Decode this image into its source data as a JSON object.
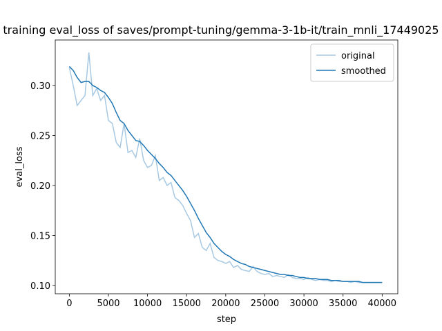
{
  "chart_data": {
    "type": "line",
    "title": "training eval_loss of saves/prompt-tuning/gemma-3-1b-it/train_mnli_17449025",
    "xlabel": "step",
    "ylabel": "eval_loss",
    "x": [
      0,
      500,
      1000,
      1500,
      2000,
      2500,
      3000,
      3500,
      4000,
      4500,
      5000,
      5500,
      6000,
      6500,
      7000,
      7500,
      8000,
      8500,
      9000,
      9500,
      10000,
      10500,
      11000,
      11500,
      12000,
      12500,
      13000,
      13500,
      14000,
      14500,
      15000,
      15500,
      16000,
      16500,
      17000,
      17500,
      18000,
      18500,
      19000,
      19500,
      20000,
      20500,
      21000,
      21500,
      22000,
      22500,
      23000,
      23500,
      24000,
      24500,
      25000,
      25500,
      26000,
      26500,
      27000,
      27500,
      28000,
      28500,
      29000,
      29500,
      30000,
      30500,
      31000,
      31500,
      32000,
      32500,
      33000,
      33500,
      34000,
      34500,
      35000,
      35500,
      36000,
      36500,
      37000,
      37500,
      38000,
      38500,
      39000,
      39500,
      40000
    ],
    "series": [
      {
        "name": "original",
        "color": "#a6c8e2",
        "values": [
          0.318,
          0.3,
          0.28,
          0.285,
          0.29,
          0.333,
          0.29,
          0.297,
          0.285,
          0.29,
          0.265,
          0.262,
          0.243,
          0.238,
          0.262,
          0.233,
          0.235,
          0.228,
          0.247,
          0.225,
          0.218,
          0.22,
          0.23,
          0.205,
          0.208,
          0.2,
          0.203,
          0.188,
          0.185,
          0.18,
          0.172,
          0.165,
          0.148,
          0.152,
          0.138,
          0.135,
          0.142,
          0.128,
          0.125,
          0.124,
          0.122,
          0.124,
          0.118,
          0.12,
          0.116,
          0.115,
          0.114,
          0.119,
          0.114,
          0.112,
          0.111,
          0.112,
          0.109,
          0.11,
          0.109,
          0.108,
          0.111,
          0.108,
          0.107,
          0.107,
          0.106,
          0.108,
          0.106,
          0.105,
          0.106,
          0.105,
          0.105,
          0.104,
          0.105,
          0.104,
          0.104,
          0.104,
          0.103,
          0.104,
          0.103,
          0.103,
          0.103,
          0.103,
          0.103,
          0.103,
          0.103
        ]
      },
      {
        "name": "smoothed",
        "color": "#1f77b4",
        "values": [
          0.319,
          0.315,
          0.308,
          0.303,
          0.304,
          0.304,
          0.3,
          0.298,
          0.295,
          0.293,
          0.288,
          0.282,
          0.273,
          0.265,
          0.262,
          0.255,
          0.25,
          0.245,
          0.244,
          0.24,
          0.235,
          0.231,
          0.227,
          0.222,
          0.218,
          0.213,
          0.21,
          0.205,
          0.2,
          0.195,
          0.189,
          0.182,
          0.175,
          0.167,
          0.16,
          0.153,
          0.148,
          0.142,
          0.138,
          0.134,
          0.131,
          0.129,
          0.126,
          0.124,
          0.122,
          0.121,
          0.119,
          0.118,
          0.117,
          0.116,
          0.115,
          0.114,
          0.113,
          0.112,
          0.111,
          0.111,
          0.11,
          0.11,
          0.109,
          0.108,
          0.108,
          0.107,
          0.107,
          0.107,
          0.106,
          0.106,
          0.106,
          0.105,
          0.105,
          0.105,
          0.104,
          0.104,
          0.104,
          0.104,
          0.104,
          0.103,
          0.103,
          0.103,
          0.103,
          0.103,
          0.103
        ]
      }
    ],
    "xlim": [
      -1800,
      42000
    ],
    "ylim": [
      0.0917,
      0.3455
    ],
    "xticks": [
      0,
      5000,
      10000,
      15000,
      20000,
      25000,
      30000,
      35000,
      40000
    ],
    "yticks": [
      {
        "value": 0.1,
        "label": "0.10"
      },
      0.15,
      {
        "value": 0.2,
        "label": "0.20"
      },
      0.25,
      {
        "value": 0.3,
        "label": "0.30"
      }
    ],
    "legend": "upper right"
  }
}
